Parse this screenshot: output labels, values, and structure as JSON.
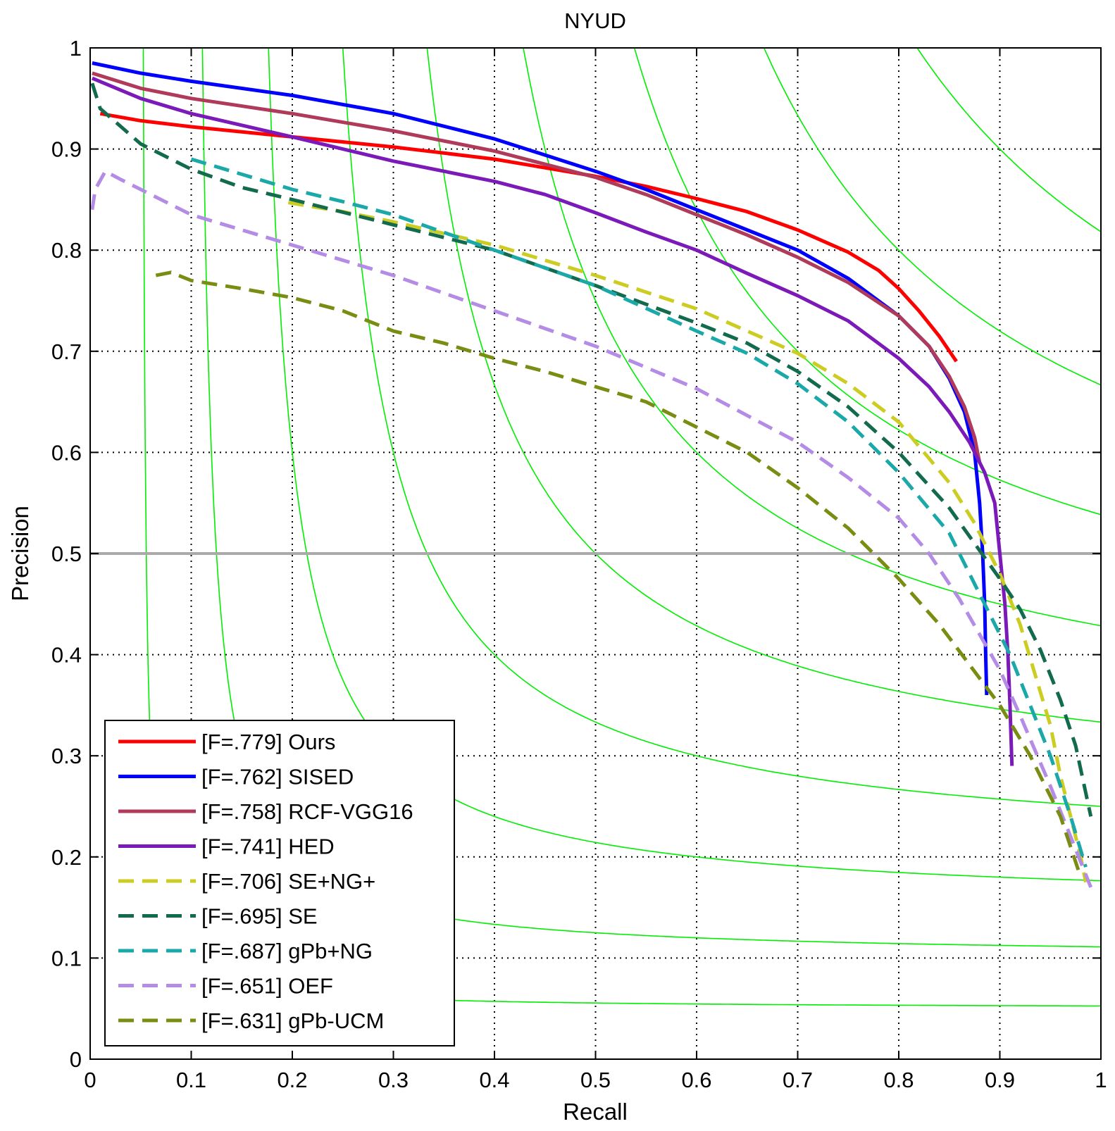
{
  "chart_data": {
    "type": "line",
    "title": "NYUD",
    "xlabel": "Recall",
    "ylabel": "Precision",
    "xlim": [
      0,
      1
    ],
    "ylim": [
      0,
      1
    ],
    "xticks": [
      0,
      0.1,
      0.2,
      0.3,
      0.4,
      0.5,
      0.6,
      0.7,
      0.8,
      0.9,
      1
    ],
    "yticks": [
      0,
      0.1,
      0.2,
      0.3,
      0.4,
      0.5,
      0.6,
      0.7,
      0.8,
      0.9,
      1
    ],
    "xtick_labels": [
      "0",
      "0.1",
      "0.2",
      "0.3",
      "0.4",
      "0.5",
      "0.6",
      "0.7",
      "0.8",
      "0.9",
      "1"
    ],
    "ytick_labels": [
      "0",
      "0.1",
      "0.2",
      "0.3",
      "0.4",
      "0.5",
      "0.6",
      "0.7",
      "0.8",
      "0.9",
      "1"
    ],
    "grid": true,
    "legend_position": "bottom-left",
    "iso_f_curves": [
      0.1,
      0.2,
      0.3,
      0.4,
      0.5,
      0.6,
      0.7,
      0.8,
      0.9
    ],
    "iso_f_color": "#00ee00",
    "reference_line": {
      "y": 0.5,
      "color": "#aaaaaa"
    },
    "series": [
      {
        "name": "[F=.779] Ours",
        "color": "#ff0000",
        "style": "solid",
        "points": [
          [
            0.01,
            0.935
          ],
          [
            0.05,
            0.928
          ],
          [
            0.1,
            0.922
          ],
          [
            0.2,
            0.912
          ],
          [
            0.3,
            0.902
          ],
          [
            0.4,
            0.89
          ],
          [
            0.5,
            0.873
          ],
          [
            0.55,
            0.863
          ],
          [
            0.6,
            0.851
          ],
          [
            0.65,
            0.838
          ],
          [
            0.7,
            0.82
          ],
          [
            0.75,
            0.798
          ],
          [
            0.78,
            0.78
          ],
          [
            0.8,
            0.762
          ],
          [
            0.82,
            0.74
          ],
          [
            0.84,
            0.715
          ],
          [
            0.857,
            0.69
          ]
        ]
      },
      {
        "name": "[F=.762] SISED",
        "color": "#0000ff",
        "style": "solid",
        "points": [
          [
            0.002,
            0.985
          ],
          [
            0.05,
            0.975
          ],
          [
            0.1,
            0.967
          ],
          [
            0.2,
            0.953
          ],
          [
            0.3,
            0.935
          ],
          [
            0.4,
            0.91
          ],
          [
            0.5,
            0.878
          ],
          [
            0.55,
            0.86
          ],
          [
            0.6,
            0.84
          ],
          [
            0.65,
            0.82
          ],
          [
            0.7,
            0.8
          ],
          [
            0.75,
            0.772
          ],
          [
            0.8,
            0.735
          ],
          [
            0.83,
            0.705
          ],
          [
            0.85,
            0.673
          ],
          [
            0.865,
            0.64
          ],
          [
            0.875,
            0.6
          ],
          [
            0.88,
            0.55
          ],
          [
            0.883,
            0.5
          ],
          [
            0.885,
            0.45
          ],
          [
            0.886,
            0.4
          ],
          [
            0.887,
            0.36
          ]
        ]
      },
      {
        "name": "[F=.758] RCF-VGG16",
        "color": "#b03a5a",
        "style": "solid",
        "points": [
          [
            0.002,
            0.975
          ],
          [
            0.05,
            0.96
          ],
          [
            0.1,
            0.95
          ],
          [
            0.2,
            0.935
          ],
          [
            0.3,
            0.918
          ],
          [
            0.4,
            0.898
          ],
          [
            0.5,
            0.872
          ],
          [
            0.55,
            0.855
          ],
          [
            0.6,
            0.835
          ],
          [
            0.65,
            0.815
          ],
          [
            0.7,
            0.793
          ],
          [
            0.75,
            0.768
          ],
          [
            0.8,
            0.735
          ],
          [
            0.83,
            0.705
          ],
          [
            0.85,
            0.675
          ],
          [
            0.865,
            0.645
          ],
          [
            0.875,
            0.615
          ],
          [
            0.88,
            0.59
          ]
        ]
      },
      {
        "name": "[F=.741] HED",
        "color": "#7b1ab8",
        "style": "solid",
        "points": [
          [
            0.002,
            0.97
          ],
          [
            0.05,
            0.95
          ],
          [
            0.1,
            0.935
          ],
          [
            0.2,
            0.912
          ],
          [
            0.3,
            0.888
          ],
          [
            0.4,
            0.868
          ],
          [
            0.45,
            0.855
          ],
          [
            0.5,
            0.837
          ],
          [
            0.55,
            0.818
          ],
          [
            0.6,
            0.8
          ],
          [
            0.65,
            0.777
          ],
          [
            0.7,
            0.755
          ],
          [
            0.75,
            0.73
          ],
          [
            0.8,
            0.693
          ],
          [
            0.83,
            0.665
          ],
          [
            0.85,
            0.64
          ],
          [
            0.87,
            0.61
          ],
          [
            0.885,
            0.58
          ],
          [
            0.895,
            0.55
          ],
          [
            0.9,
            0.5
          ],
          [
            0.905,
            0.45
          ],
          [
            0.908,
            0.4
          ],
          [
            0.91,
            0.35
          ],
          [
            0.911,
            0.32
          ],
          [
            0.912,
            0.29
          ]
        ]
      },
      {
        "name": "[F=.706] SE+NG+",
        "color": "#cccc22",
        "style": "dashed",
        "points": [
          [
            0.196,
            0.847
          ],
          [
            0.25,
            0.838
          ],
          [
            0.3,
            0.828
          ],
          [
            0.4,
            0.805
          ],
          [
            0.5,
            0.775
          ],
          [
            0.6,
            0.742
          ],
          [
            0.65,
            0.72
          ],
          [
            0.7,
            0.698
          ],
          [
            0.75,
            0.668
          ],
          [
            0.8,
            0.63
          ],
          [
            0.85,
            0.57
          ],
          [
            0.875,
            0.53
          ],
          [
            0.9,
            0.48
          ],
          [
            0.92,
            0.43
          ],
          [
            0.935,
            0.38
          ],
          [
            0.95,
            0.33
          ],
          [
            0.96,
            0.28
          ],
          [
            0.97,
            0.24
          ],
          [
            0.98,
            0.2
          ],
          [
            0.985,
            0.175
          ]
        ]
      },
      {
        "name": "[F=.695] SE",
        "color": "#136b4d",
        "style": "dashed",
        "points": [
          [
            0.002,
            0.965
          ],
          [
            0.01,
            0.94
          ],
          [
            0.05,
            0.905
          ],
          [
            0.1,
            0.88
          ],
          [
            0.15,
            0.862
          ],
          [
            0.2,
            0.85
          ],
          [
            0.3,
            0.825
          ],
          [
            0.4,
            0.8
          ],
          [
            0.5,
            0.765
          ],
          [
            0.6,
            0.728
          ],
          [
            0.65,
            0.708
          ],
          [
            0.7,
            0.68
          ],
          [
            0.75,
            0.645
          ],
          [
            0.8,
            0.6
          ],
          [
            0.85,
            0.545
          ],
          [
            0.875,
            0.51
          ],
          [
            0.9,
            0.475
          ],
          [
            0.92,
            0.445
          ],
          [
            0.94,
            0.405
          ],
          [
            0.96,
            0.355
          ],
          [
            0.975,
            0.31
          ],
          [
            0.99,
            0.24
          ]
        ]
      },
      {
        "name": "[F=.687] gPb+NG",
        "color": "#1ba8a8",
        "style": "dashed",
        "points": [
          [
            0.1,
            0.89
          ],
          [
            0.15,
            0.875
          ],
          [
            0.2,
            0.86
          ],
          [
            0.25,
            0.848
          ],
          [
            0.3,
            0.835
          ],
          [
            0.4,
            0.8
          ],
          [
            0.5,
            0.765
          ],
          [
            0.6,
            0.72
          ],
          [
            0.65,
            0.698
          ],
          [
            0.7,
            0.668
          ],
          [
            0.75,
            0.63
          ],
          [
            0.8,
            0.58
          ],
          [
            0.85,
            0.52
          ],
          [
            0.875,
            0.47
          ],
          [
            0.89,
            0.44
          ],
          [
            0.91,
            0.4
          ],
          [
            0.93,
            0.35
          ],
          [
            0.95,
            0.3
          ],
          [
            0.97,
            0.24
          ],
          [
            0.985,
            0.19
          ]
        ]
      },
      {
        "name": "[F=.651] OEF",
        "color": "#b48ce6",
        "style": "dashed",
        "points": [
          [
            0.002,
            0.84
          ],
          [
            0.005,
            0.86
          ],
          [
            0.015,
            0.878
          ],
          [
            0.03,
            0.87
          ],
          [
            0.05,
            0.86
          ],
          [
            0.1,
            0.835
          ],
          [
            0.15,
            0.82
          ],
          [
            0.2,
            0.805
          ],
          [
            0.3,
            0.775
          ],
          [
            0.4,
            0.74
          ],
          [
            0.5,
            0.705
          ],
          [
            0.6,
            0.663
          ],
          [
            0.7,
            0.61
          ],
          [
            0.75,
            0.575
          ],
          [
            0.8,
            0.535
          ],
          [
            0.83,
            0.5
          ],
          [
            0.86,
            0.455
          ],
          [
            0.88,
            0.42
          ],
          [
            0.9,
            0.385
          ],
          [
            0.92,
            0.34
          ],
          [
            0.95,
            0.27
          ],
          [
            0.97,
            0.22
          ],
          [
            0.99,
            0.17
          ]
        ]
      },
      {
        "name": "[F=.631] gPb-UCM",
        "color": "#7b8c12",
        "style": "dashed",
        "points": [
          [
            0.065,
            0.775
          ],
          [
            0.08,
            0.778
          ],
          [
            0.1,
            0.77
          ],
          [
            0.15,
            0.762
          ],
          [
            0.2,
            0.753
          ],
          [
            0.25,
            0.74
          ],
          [
            0.3,
            0.72
          ],
          [
            0.35,
            0.708
          ],
          [
            0.4,
            0.693
          ],
          [
            0.45,
            0.68
          ],
          [
            0.5,
            0.665
          ],
          [
            0.55,
            0.65
          ],
          [
            0.6,
            0.625
          ],
          [
            0.65,
            0.6
          ],
          [
            0.7,
            0.565
          ],
          [
            0.75,
            0.525
          ],
          [
            0.8,
            0.475
          ],
          [
            0.84,
            0.43
          ],
          [
            0.87,
            0.39
          ],
          [
            0.9,
            0.35
          ],
          [
            0.93,
            0.3
          ],
          [
            0.96,
            0.24
          ],
          [
            0.98,
            0.18
          ]
        ]
      }
    ]
  }
}
